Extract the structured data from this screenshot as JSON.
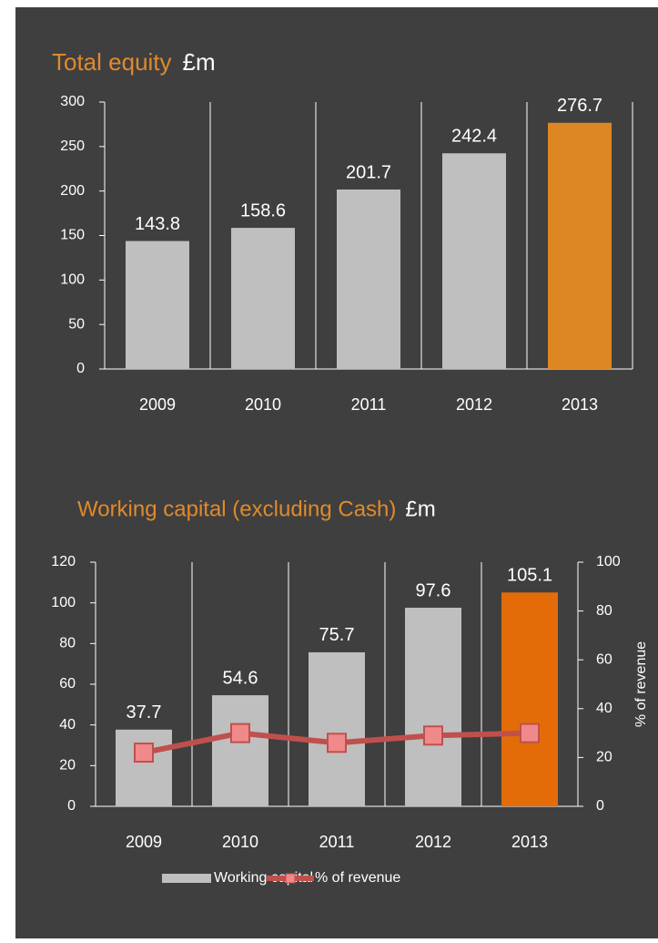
{
  "chart_data": [
    {
      "type": "bar",
      "title": "Total equity",
      "unit": "£m",
      "categories": [
        "2009",
        "2010",
        "2011",
        "2012",
        "2013"
      ],
      "values": [
        143.8,
        158.6,
        201.7,
        242.4,
        276.7
      ],
      "colors": [
        "#bfbfbf",
        "#bfbfbf",
        "#bfbfbf",
        "#bfbfbf",
        "#dd8624"
      ],
      "ylim": [
        0,
        300
      ],
      "yticks": [
        0,
        50,
        100,
        150,
        200,
        250,
        300
      ]
    },
    {
      "type": "bar_line",
      "title": "Working capital (excluding Cash)",
      "unit": "£m",
      "categories": [
        "2009",
        "2010",
        "2011",
        "2012",
        "2013"
      ],
      "series": [
        {
          "name": "Working capital",
          "color": "#bfbfbf",
          "colors": [
            "#bfbfbf",
            "#bfbfbf",
            "#bfbfbf",
            "#bfbfbf",
            "#e36c09"
          ],
          "values": [
            37.7,
            54.6,
            75.7,
            97.6,
            105.1
          ]
        },
        {
          "name": "% of revenue",
          "color": "#c0504d",
          "axis": "y2",
          "values": [
            22,
            30,
            26,
            29,
            30
          ]
        }
      ],
      "ylim": [
        0,
        120
      ],
      "yticks": [
        0,
        20,
        40,
        60,
        80,
        100,
        120
      ],
      "y2lim": [
        0,
        100
      ],
      "y2ticks": [
        0,
        20,
        40,
        60,
        80,
        100
      ],
      "y2label": "% of revenue",
      "legend": "bottom"
    }
  ]
}
